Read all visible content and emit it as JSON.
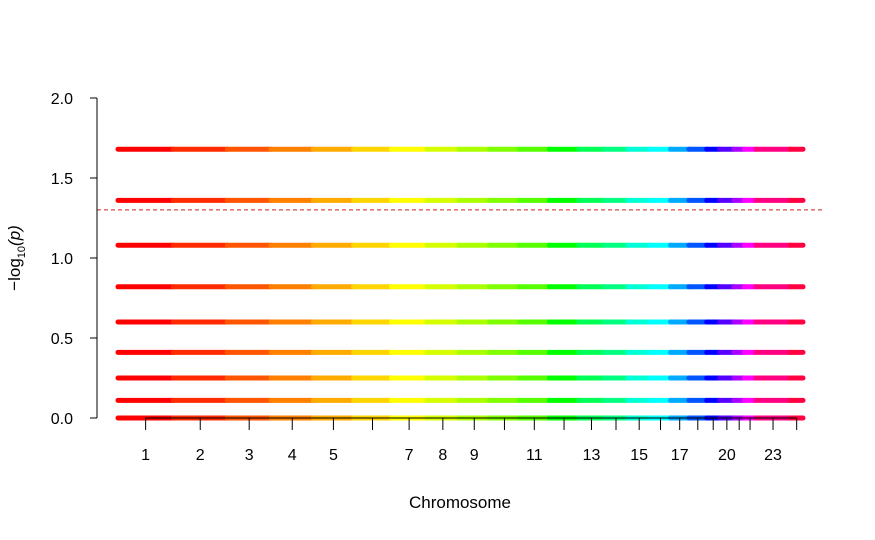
{
  "chart_data": {
    "type": "scatter",
    "title": "",
    "xlabel": "Chromosome",
    "ylabel": {
      "prefix": "−log",
      "subscript": "10",
      "arg": "(p)"
    },
    "ylim": [
      0,
      2
    ],
    "y_ticks": [
      "0.0",
      "0.5",
      "1.0",
      "1.5",
      "2.0"
    ],
    "significance_line": {
      "y": 1.301,
      "color": "#CC2222",
      "style": "dashed"
    },
    "x_tick_labels": [
      "1",
      "2",
      "3",
      "4",
      "5",
      "7",
      "8",
      "9",
      "11",
      "13",
      "15",
      "17",
      "20",
      "23"
    ],
    "p_value_levels": [
      0.0,
      0.11,
      0.25,
      0.41,
      0.6,
      0.82,
      1.08,
      1.36,
      1.68
    ],
    "chromosomes": [
      {
        "chr": "1",
        "start": 0,
        "end": 249,
        "color": "#FF0000",
        "labeled": true
      },
      {
        "chr": "2",
        "start": 249,
        "end": 492,
        "color": "#FF2A00",
        "labeled": true
      },
      {
        "chr": "3",
        "start": 492,
        "end": 690,
        "color": "#FF5500",
        "labeled": true
      },
      {
        "chr": "4",
        "start": 690,
        "end": 880,
        "color": "#FF8000",
        "labeled": true
      },
      {
        "chr": "5",
        "start": 880,
        "end": 1061,
        "color": "#FFAA00",
        "labeled": true
      },
      {
        "chr": "6",
        "start": 1061,
        "end": 1232,
        "color": "#FFD500",
        "labeled": false
      },
      {
        "chr": "7",
        "start": 1232,
        "end": 1391,
        "color": "#FFFF00",
        "labeled": true
      },
      {
        "chr": "8",
        "start": 1391,
        "end": 1536,
        "color": "#D5FF00",
        "labeled": true
      },
      {
        "chr": "9",
        "start": 1536,
        "end": 1674,
        "color": "#AAFF00",
        "labeled": true
      },
      {
        "chr": "10",
        "start": 1674,
        "end": 1808,
        "color": "#80FF00",
        "labeled": false
      },
      {
        "chr": "11",
        "start": 1808,
        "end": 1943,
        "color": "#55FF00",
        "labeled": true
      },
      {
        "chr": "12",
        "start": 1943,
        "end": 2076,
        "color": "#00FF00",
        "labeled": false
      },
      {
        "chr": "13",
        "start": 2076,
        "end": 2190,
        "color": "#00FF55",
        "labeled": true
      },
      {
        "chr": "14",
        "start": 2190,
        "end": 2297,
        "color": "#00FF80",
        "labeled": false
      },
      {
        "chr": "15",
        "start": 2297,
        "end": 2399,
        "color": "#00FFD5",
        "labeled": true
      },
      {
        "chr": "16",
        "start": 2399,
        "end": 2489,
        "color": "#00FFFF",
        "labeled": false
      },
      {
        "chr": "17",
        "start": 2489,
        "end": 2572,
        "color": "#00AAFF",
        "labeled": true
      },
      {
        "chr": "18",
        "start": 2572,
        "end": 2652,
        "color": "#0055FF",
        "labeled": false
      },
      {
        "chr": "19",
        "start": 2652,
        "end": 2711,
        "color": "#0000FF",
        "labeled": false
      },
      {
        "chr": "20",
        "start": 2711,
        "end": 2775,
        "color": "#5500FF",
        "labeled": true
      },
      {
        "chr": "21",
        "start": 2775,
        "end": 2822,
        "color": "#AA00FF",
        "labeled": false
      },
      {
        "chr": "22",
        "start": 2822,
        "end": 2873,
        "color": "#FF00FF",
        "labeled": false
      },
      {
        "chr": "23",
        "start": 2873,
        "end": 3029,
        "color": "#FF0080",
        "labeled": true
      },
      {
        "chr": "24",
        "start": 3029,
        "end": 3086,
        "color": "#FF0040",
        "labeled": false
      }
    ],
    "xlim": [
      0,
      3086
    ],
    "grid": false,
    "legend": "none"
  }
}
